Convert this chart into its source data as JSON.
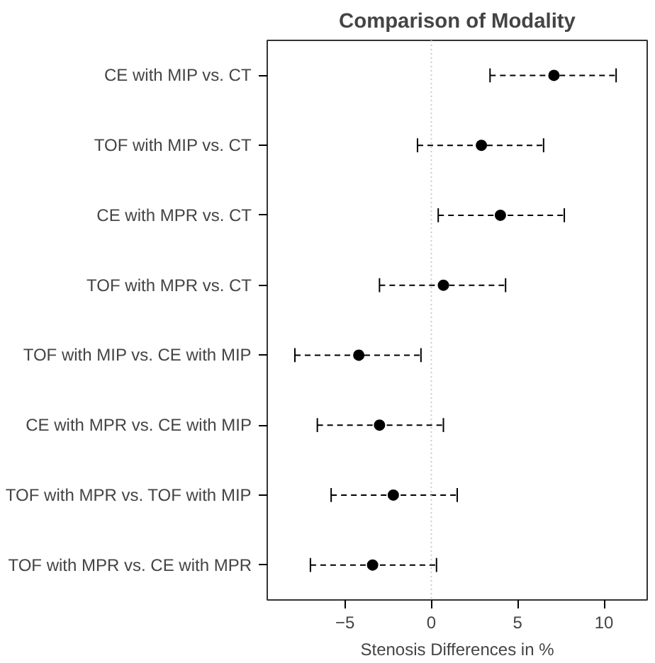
{
  "chart_data": {
    "type": "scatter",
    "orientation": "horizontal",
    "title": "Comparison of Modality",
    "xlabel": "Stenosis Differences in %",
    "categories": [
      "CE with MIP vs. CT",
      "TOF with MIP vs. CT",
      "CE with MPR vs. CT",
      "TOF with MPR vs. CT",
      "TOF with MIP vs. CE with MIP",
      "CE with MPR vs. CE with MIP",
      "TOF with MPR vs. TOF with MIP",
      "TOF with MPR vs. CE with MPR"
    ],
    "values": [
      7.1,
      2.9,
      4.0,
      0.7,
      -4.2,
      -3.0,
      -2.2,
      -3.4
    ],
    "errors": [
      [
        3.4,
        10.7
      ],
      [
        -0.8,
        6.5
      ],
      [
        0.4,
        7.7
      ],
      [
        -3.0,
        4.3
      ],
      [
        -7.9,
        -0.6
      ],
      [
        -6.6,
        0.7
      ],
      [
        -5.8,
        1.5
      ],
      [
        -7.0,
        0.3
      ]
    ],
    "color": "#000000",
    "marker": "circle",
    "line_style": "dashed",
    "xlim": [
      -9.5,
      12.5
    ],
    "xticks": [
      -5,
      0,
      5,
      10
    ],
    "grid": false,
    "ref_lines": [
      {
        "axis": "x",
        "value": 0,
        "color": "#cccccc",
        "line_style": "dotted"
      }
    ]
  }
}
